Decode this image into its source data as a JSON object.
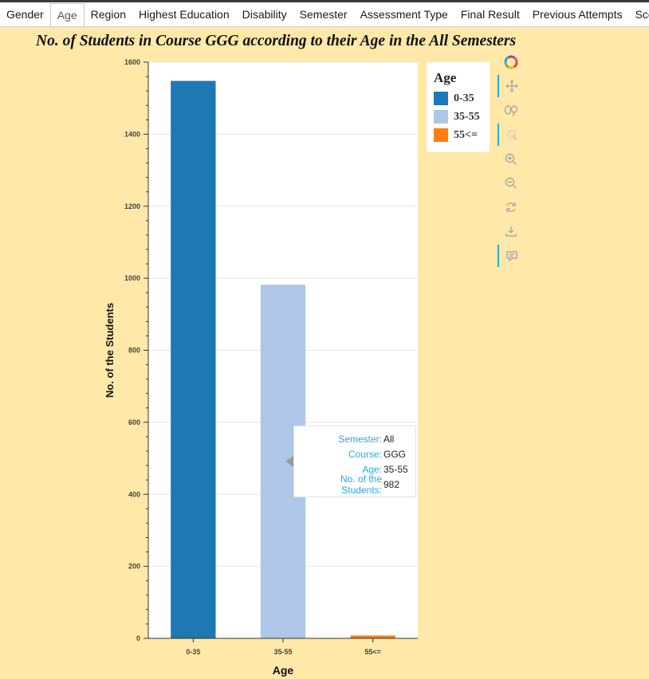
{
  "tabs": [
    {
      "label": "Gender",
      "active": false
    },
    {
      "label": "Age",
      "active": true
    },
    {
      "label": "Region",
      "active": false
    },
    {
      "label": "Highest Education",
      "active": false
    },
    {
      "label": "Disability",
      "active": false
    },
    {
      "label": "Semester",
      "active": false
    },
    {
      "label": "Assessment Type",
      "active": false
    },
    {
      "label": "Final Result",
      "active": false
    },
    {
      "label": "Previous Attempts",
      "active": false
    },
    {
      "label": "Scores",
      "active": false
    }
  ],
  "chart_data": {
    "type": "bar",
    "title": "No. of Students in Course GGG according to their Age in the All Semesters",
    "xlabel": "Age",
    "ylabel": "No. of the Students",
    "categories": [
      "0-35",
      "35-55",
      "55<="
    ],
    "values": [
      1548,
      982,
      8
    ],
    "colors": [
      "#1f77b4",
      "#aec7e8",
      "#ff7f0e"
    ],
    "ylim": [
      0,
      1600
    ],
    "yticks": [
      0,
      200,
      400,
      600,
      800,
      1000,
      1200,
      1400,
      1600
    ],
    "grid": true,
    "legend": {
      "title": "Age",
      "placement": "right",
      "items": [
        "0-35",
        "35-55",
        "55<="
      ]
    }
  },
  "tooltip": {
    "rows": [
      {
        "key": "Semester:",
        "value": "All"
      },
      {
        "key": "Course:",
        "value": "GGG"
      },
      {
        "key": "Age:",
        "value": "35-55"
      },
      {
        "key": "No. of the Students:",
        "value": "982"
      }
    ]
  },
  "toolbar": {
    "tools": [
      {
        "name": "logo-icon",
        "active": false
      },
      {
        "name": "pan-icon",
        "active": true
      },
      {
        "name": "box-zoom-icon",
        "active": false
      },
      {
        "name": "tap-icon",
        "active": true
      },
      {
        "name": "zoom-in-icon",
        "active": false
      },
      {
        "name": "zoom-out-icon",
        "active": false
      },
      {
        "name": "reset-icon",
        "active": false
      },
      {
        "name": "save-icon",
        "active": false
      },
      {
        "name": "hover-icon",
        "active": true
      }
    ]
  }
}
